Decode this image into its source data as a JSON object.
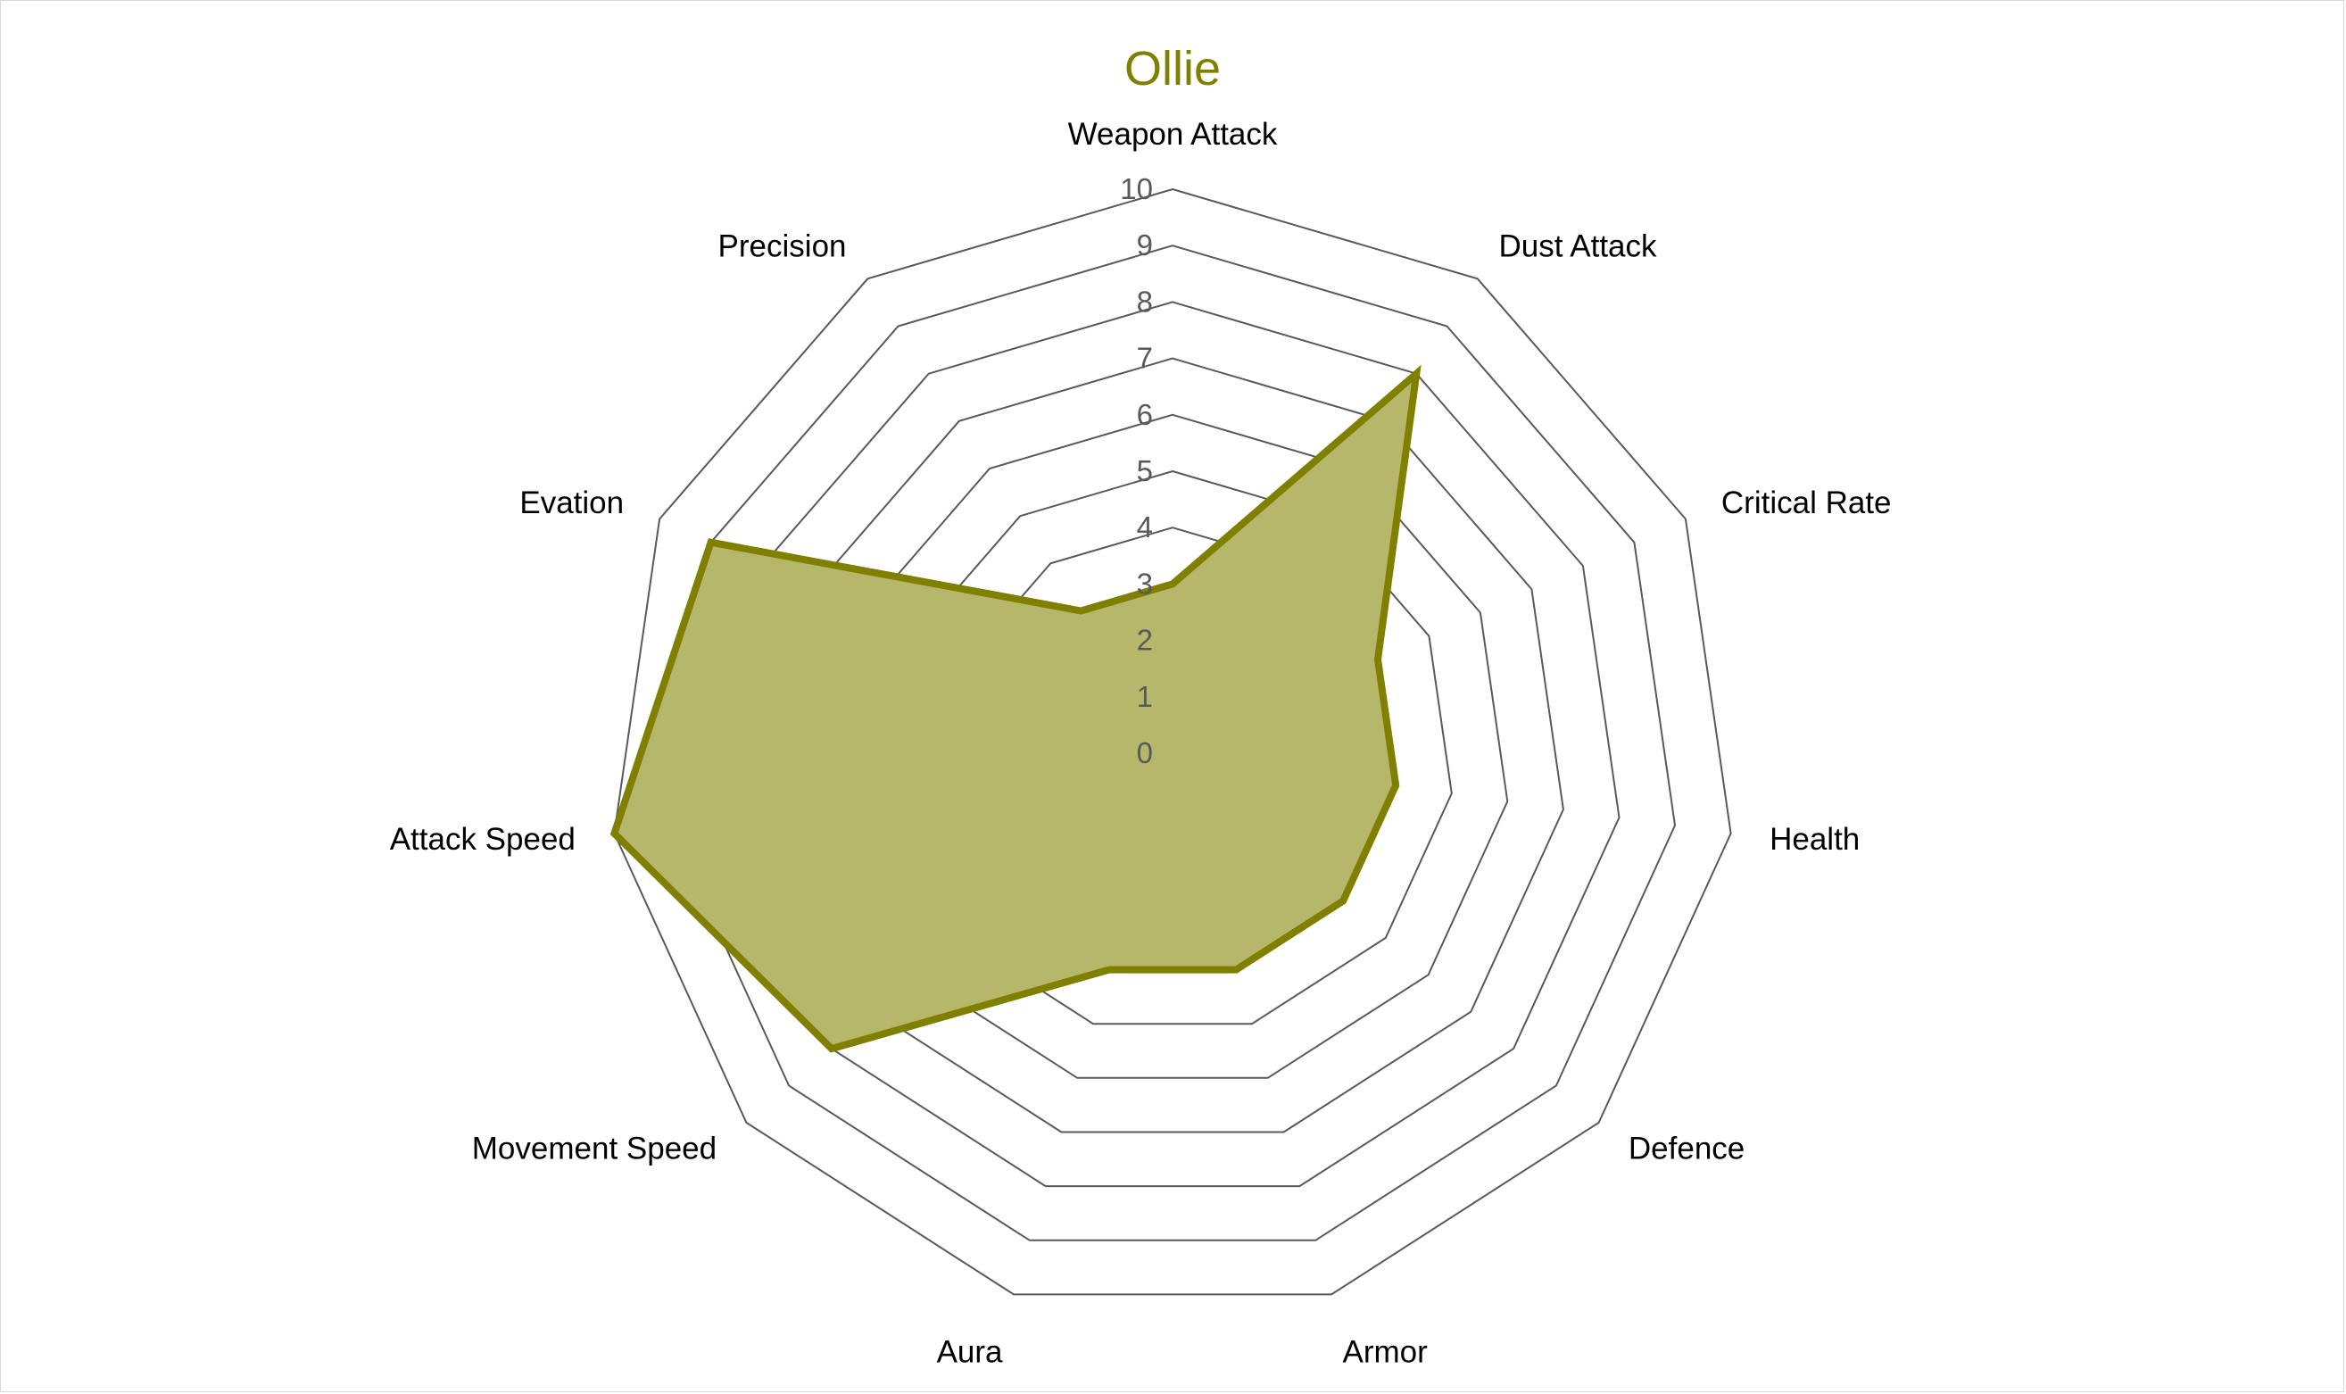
{
  "chart_data": {
    "type": "radar",
    "title": "Ollie",
    "categories": [
      "Weapon Attack",
      "Dust Attack",
      "Critical Rate",
      "Health",
      "Defence",
      "Armor",
      "Aura",
      "Movement Speed",
      "Attack Speed",
      "Evation",
      "Precision"
    ],
    "series": [
      {
        "values": [
          3,
          8,
          4,
          4,
          4,
          4,
          4,
          8,
          10,
          9,
          3
        ]
      }
    ],
    "rlim": [
      0,
      10
    ],
    "ticks": [
      "0",
      "1",
      "2",
      "3",
      "4",
      "5",
      "6",
      "7",
      "8",
      "9",
      "10"
    ],
    "legend": "none",
    "grid": true
  },
  "colors": {
    "series_line": "#7f7f00",
    "series_fill": "#b7b76b",
    "grid": "#595959",
    "title": "#7f7f00"
  }
}
